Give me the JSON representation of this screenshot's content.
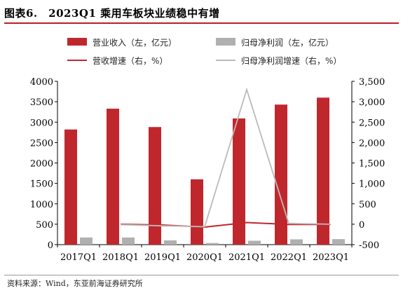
{
  "title": "图表6.　2023Q1 乘用车板块业绩稳中有增",
  "source": "资料来源：Wind，东亚前海证券研究所",
  "chart_data": {
    "type": "bar+line",
    "categories": [
      "2017Q1",
      "2018Q1",
      "2019Q1",
      "2020Q1",
      "2021Q1",
      "2022Q1",
      "2023Q1"
    ],
    "left_axis": {
      "min": 0,
      "max": 4000,
      "ticks": [
        0,
        500,
        1000,
        1500,
        2000,
        2500,
        3000,
        3500,
        4000
      ],
      "tick_labels": [
        "0",
        "500",
        "1000",
        "1500",
        "2000",
        "2500",
        "3000",
        "3500",
        "4000"
      ]
    },
    "right_axis": {
      "min": -500,
      "max": 3500,
      "ticks": [
        -500,
        0,
        500,
        1000,
        1500,
        2000,
        2500,
        3000,
        3500
      ],
      "tick_labels": [
        "-500",
        "0",
        "500",
        "1,000",
        "1,500",
        "2,000",
        "2,500",
        "3,000",
        "3,500"
      ]
    },
    "series": [
      {
        "name": "营业收入（左，亿元）",
        "type": "bar",
        "axis": "left",
        "color": "#c0272d",
        "values": [
          2820,
          3330,
          2880,
          1600,
          3090,
          3430,
          3600
        ]
      },
      {
        "name": "归母净利润（左，亿元）",
        "type": "bar",
        "axis": "left",
        "color": "#b0b0b0",
        "values": [
          175,
          175,
          105,
          40,
          95,
          130,
          135
        ]
      },
      {
        "name": "营收增速（右，%）",
        "type": "line",
        "axis": "right",
        "color": "#c0272d",
        "values": [
          null,
          0,
          -20,
          -70,
          40,
          -5,
          -5
        ]
      },
      {
        "name": "归母净利润增速（右，%）",
        "type": "line",
        "axis": "right",
        "color": "#bbbbbb",
        "values": [
          null,
          -10,
          -40,
          -60,
          3300,
          20,
          0
        ]
      }
    ],
    "legend_position": "top",
    "grid": false
  }
}
